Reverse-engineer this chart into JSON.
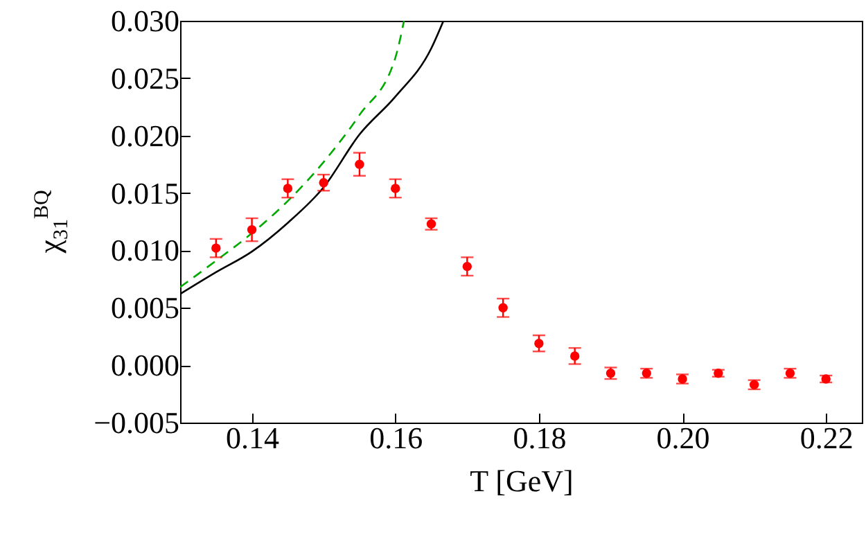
{
  "chart_data": {
    "type": "scatter",
    "xlabel": "T [GeV]",
    "ylabel": "χ$_{31}$$^{BQ}$",
    "xlim": [
      0.13,
      0.225
    ],
    "xticks": [
      0.14,
      0.16,
      0.18,
      {
        "value": 0.2,
        "label": "0.20"
      },
      0.22
    ],
    "ylim": [
      -0.005,
      0.03
    ],
    "yticks": [
      {
        "value": -0.005,
        "label": "−0.005"
      },
      {
        "value": 0,
        "label": "0.000"
      },
      {
        "value": 0.005,
        "label": "0.005"
      },
      {
        "value": 0.01,
        "label": "0.010"
      },
      {
        "value": 0.015,
        "label": "0.015"
      },
      {
        "value": 0.02,
        "label": "0.020"
      },
      {
        "value": 0.025,
        "label": "0.025"
      },
      {
        "value": 0.03,
        "label": "0.030"
      }
    ],
    "grid": false,
    "series": [
      {
        "type": "line",
        "color": "#000000",
        "line_style": "solid",
        "x": [
          0.13,
          0.135,
          0.14,
          0.145,
          0.15,
          0.155,
          0.16,
          0.165,
          0.1667
        ],
        "values": [
          0.0062,
          0.0081,
          0.0099,
          0.0124,
          0.0155,
          0.0201,
          0.0234,
          0.0276,
          0.03
        ]
      },
      {
        "type": "line",
        "color": "#00aa00",
        "line_style": "dashed",
        "x": [
          0.13,
          0.135,
          0.14,
          0.145,
          0.15,
          0.155,
          0.16,
          0.1612
        ],
        "values": [
          0.0068,
          0.0091,
          0.0115,
          0.0143,
          0.0177,
          0.0218,
          0.0268,
          0.03
        ]
      },
      {
        "marker": "circle",
        "color": "#ff0000",
        "x": [
          0.135,
          0.14,
          0.145,
          0.15,
          0.155,
          0.16,
          0.165,
          0.17,
          0.175,
          0.18,
          0.185,
          0.19,
          0.195,
          0.2,
          0.205,
          0.21,
          0.215,
          0.22
        ],
        "values": [
          0.0102,
          0.0118,
          0.0154,
          0.0159,
          0.0175,
          0.0154,
          0.0123,
          0.0086,
          0.005,
          0.0019,
          0.0008,
          -0.0007,
          -0.0007,
          -0.0012,
          -0.0007,
          -0.0017,
          -0.0007,
          -0.0012
        ],
        "errors": [
          0.0008,
          0.001,
          0.0008,
          0.0007,
          0.001,
          0.0008,
          0.0005,
          0.0008,
          0.0008,
          0.0007,
          0.0007,
          0.0005,
          0.0004,
          0.0004,
          0.0003,
          0.0004,
          0.0004,
          0.0003
        ]
      }
    ]
  }
}
